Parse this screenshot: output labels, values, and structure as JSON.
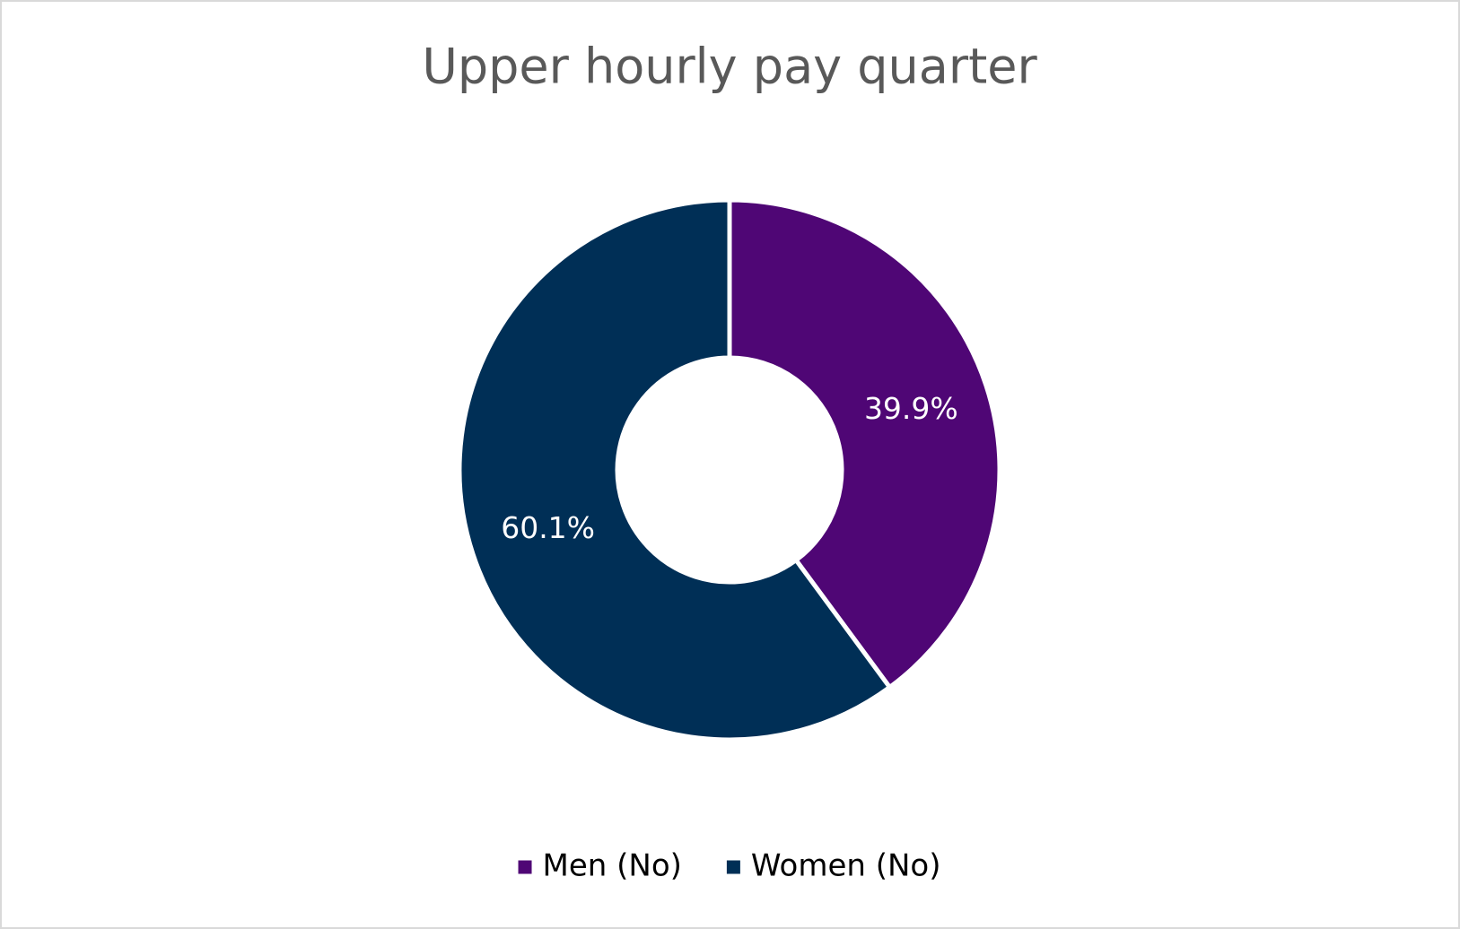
{
  "chart_data": {
    "type": "donut",
    "title": "Upper hourly pay quarter",
    "categories": [
      "Men (No)",
      "Women (No)"
    ],
    "values": [
      39.9,
      60.1
    ],
    "value_labels": [
      "39.9%",
      "60.1%"
    ],
    "colors": [
      "#4f0675",
      "#002f56"
    ],
    "legend": "bottom"
  }
}
